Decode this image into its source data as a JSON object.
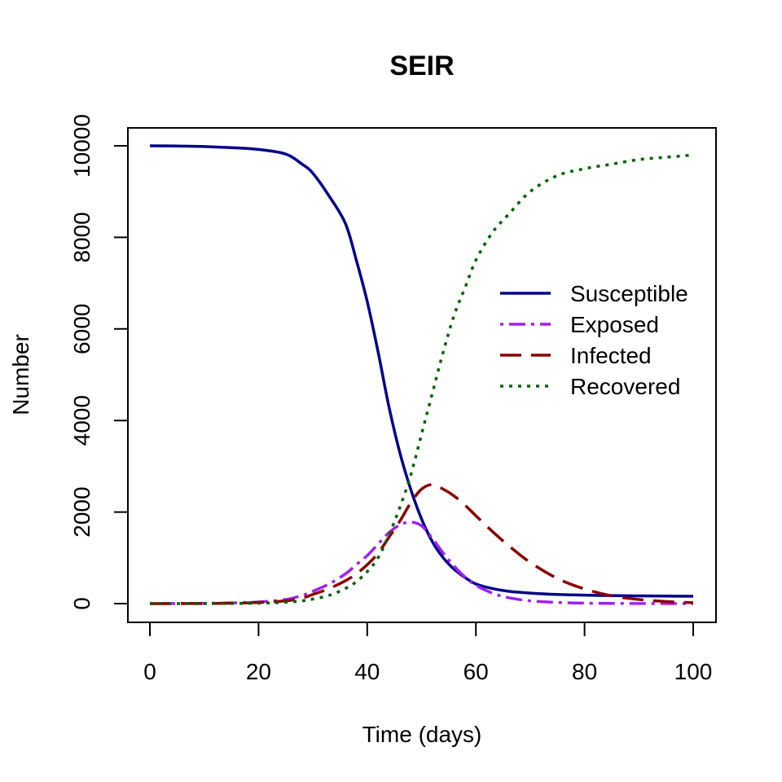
{
  "chart_data": {
    "type": "line",
    "title": "SEIR",
    "xlabel": "Time (days)",
    "ylabel": "Number",
    "xlim": [
      0,
      100
    ],
    "ylim": [
      0,
      10000
    ],
    "x_ticks": [
      "0",
      "20",
      "40",
      "60",
      "80",
      "100"
    ],
    "y_ticks": [
      "0",
      "2000",
      "4000",
      "6000",
      "8000",
      "10000"
    ],
    "grid": false,
    "legend_position": "right",
    "x": [
      0,
      5,
      10,
      15,
      20,
      25,
      28,
      30,
      33,
      36,
      38,
      40,
      42,
      44,
      46,
      48,
      50,
      52,
      54,
      56,
      58,
      60,
      63,
      66,
      70,
      75,
      80,
      85,
      90,
      95,
      100
    ],
    "series": [
      {
        "name": "Susceptible",
        "color": "#00008B",
        "dash": "solid",
        "values": [
          10000,
          9995,
          9985,
          9960,
          9920,
          9820,
          9600,
          9400,
          8900,
          8300,
          7500,
          6600,
          5500,
          4300,
          3300,
          2500,
          1850,
          1350,
          1000,
          750,
          570,
          430,
          330,
          270,
          230,
          200,
          185,
          175,
          170,
          165,
          160
        ]
      },
      {
        "name": "Exposed",
        "color": "#A020F0",
        "dash": "dashdot",
        "values": [
          0,
          2,
          5,
          15,
          35,
          90,
          180,
          270,
          430,
          650,
          850,
          1050,
          1300,
          1550,
          1720,
          1780,
          1700,
          1420,
          1100,
          820,
          580,
          400,
          230,
          130,
          60,
          25,
          10,
          5,
          2,
          1,
          0
        ]
      },
      {
        "name": "Infected",
        "color": "#8B0000",
        "dash": "dashed",
        "values": [
          0,
          1,
          3,
          10,
          25,
          60,
          120,
          200,
          330,
          500,
          650,
          850,
          1100,
          1450,
          1800,
          2200,
          2500,
          2600,
          2500,
          2350,
          2150,
          1920,
          1580,
          1270,
          900,
          550,
          320,
          170,
          90,
          45,
          20
        ]
      },
      {
        "name": "Recovered",
        "color": "#006400",
        "dash": "dotted",
        "values": [
          0,
          0,
          1,
          3,
          10,
          30,
          60,
          100,
          180,
          330,
          480,
          700,
          1000,
          1500,
          2100,
          2800,
          3700,
          4600,
          5500,
          6300,
          6900,
          7500,
          8100,
          8500,
          9000,
          9350,
          9500,
          9600,
          9700,
          9750,
          9800
        ]
      }
    ]
  }
}
